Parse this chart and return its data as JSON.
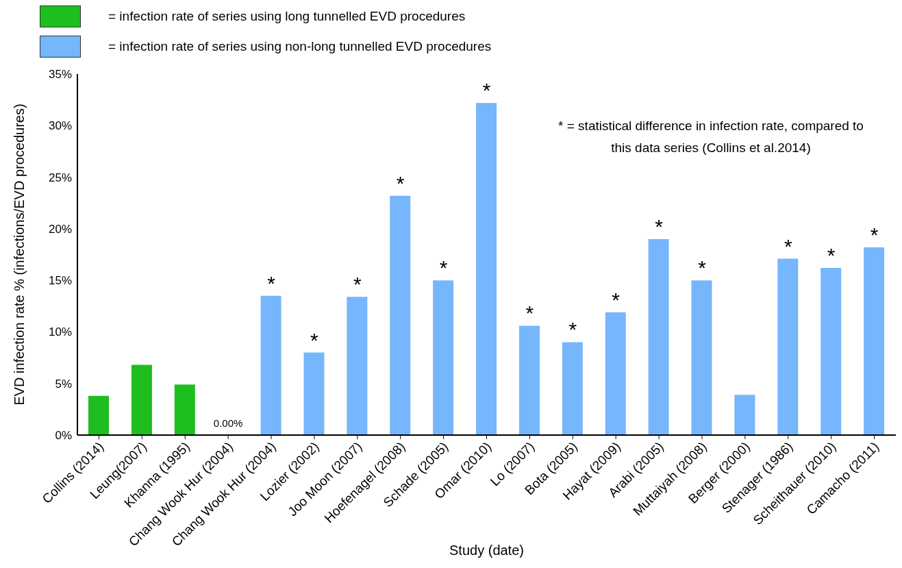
{
  "chart_data": {
    "type": "bar",
    "xlabel": "Study (date)",
    "ylabel": "EVD infection rate % (infections/EVD procedures)",
    "categories": [
      "Collins (2014)",
      "Leung(2007)",
      "Khanna (1995)",
      "Chang Wook Hur (2004)",
      "Chang Wook Hur (2004)",
      "Lozier (2002)",
      "Joo Moon (2007)",
      "Hoefenagel (2008)",
      "Schade (2005)",
      "Omar (2010)",
      "Lo (2007)",
      "Bota (2005)",
      "Hayat (2009)",
      "Arabi (2005)",
      "Muttaiyah (2008)",
      "Berger (2000)",
      "Stenager (1986)",
      "Scheithauer (2010)",
      "Camacho (2011)"
    ],
    "series": [
      {
        "name": "= infection rate of series using long tunnelled EVD procedures",
        "color": "#1dbe1d",
        "values": [
          3.8,
          6.8,
          4.9,
          0,
          null,
          null,
          null,
          null,
          null,
          null,
          null,
          null,
          null,
          null,
          null,
          null,
          null,
          null,
          null
        ],
        "value_labels": [
          null,
          null,
          null,
          "0.00%",
          null,
          null,
          null,
          null,
          null,
          null,
          null,
          null,
          null,
          null,
          null,
          null,
          null,
          null,
          null
        ]
      },
      {
        "name": "= infection rate of series using non-long tunnelled EVD procedures",
        "color": "#75b6fd",
        "values": [
          null,
          null,
          null,
          null,
          13.5,
          8.0,
          13.4,
          23.2,
          15.0,
          32.2,
          10.6,
          9.0,
          11.9,
          19.0,
          15.0,
          3.9,
          17.1,
          16.2,
          18.2
        ],
        "value_labels": [
          null,
          null,
          null,
          null,
          "*",
          "*",
          "*",
          "*",
          "*",
          "*",
          "*",
          "*",
          "*",
          "*",
          "*",
          null,
          "*",
          "*",
          "*"
        ]
      }
    ],
    "ylim": [
      0,
      35
    ],
    "yticks": [
      {
        "value": 0,
        "label": "0%"
      },
      {
        "value": 5,
        "label": "5%"
      },
      {
        "value": 10,
        "label": "10%"
      },
      {
        "value": 15,
        "label": "15%"
      },
      {
        "value": 20,
        "label": "20%"
      },
      {
        "value": 25,
        "label": "25%"
      },
      {
        "value": 30,
        "label": "30%"
      },
      {
        "value": 35,
        "label": "35%"
      }
    ],
    "legend": "top left",
    "annotations": [
      "* = statistical difference in infection rate, compared to this data series (Collins et al.2014)"
    ]
  }
}
